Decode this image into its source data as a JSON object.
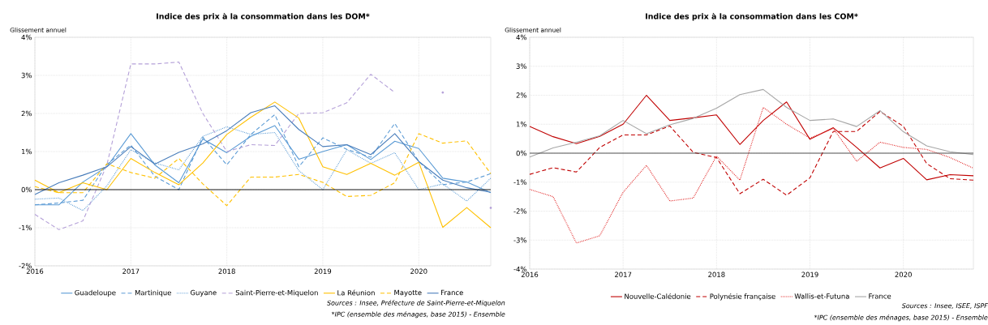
{
  "chart_data": [
    {
      "type": "line",
      "title": "Indice des prix à la consommation dans les DOM*",
      "ylabel": "Glissement annuel",
      "x": [
        2016,
        2016.25,
        2016.5,
        2016.75,
        2017,
        2017.25,
        2017.5,
        2017.75,
        2018,
        2018.25,
        2018.5,
        2018.75,
        2019,
        2019.25,
        2019.5,
        2019.75,
        2020,
        2020.25,
        2020.5,
        2020.75
      ],
      "xlim": [
        2016,
        2020.75
      ],
      "xticks": [
        2016,
        2017,
        2018,
        2019,
        2020
      ],
      "ylim": [
        -2,
        4
      ],
      "yticks": [
        {
          "value": -2,
          "label": "-2%"
        },
        {
          "value": -1,
          "label": "-1%"
        },
        {
          "value": 0,
          "label": "0%"
        },
        {
          "value": 1,
          "label": "1%"
        },
        {
          "value": 2,
          "label": "2%"
        },
        {
          "value": 3,
          "label": "3%"
        },
        {
          "value": 4,
          "label": "4%"
        }
      ],
      "grid": true,
      "legend": "bottom",
      "marker": "none",
      "ref_lines": [
        {
          "axis": "y",
          "value": 0,
          "color": "#000000"
        }
      ],
      "series": [
        {
          "name": "Guadeloupe",
          "color": "#5b9bd5",
          "line_style": "solid",
          "values": [
            -0.4,
            -0.4,
            0.2,
            0.6,
            1.47,
            0.65,
            0.18,
            1.33,
            0.97,
            1.4,
            1.68,
            0.8,
            1.0,
            1.18,
            0.79,
            1.27,
            1.08,
            0.3,
            0.2,
            -0.08
          ]
        },
        {
          "name": "Martinique",
          "color": "#5b9bd5",
          "line_style": "dashed",
          "values": [
            -0.4,
            -0.35,
            -0.28,
            0.66,
            1.17,
            0.35,
            0.0,
            1.38,
            0.65,
            1.45,
            1.97,
            0.6,
            1.36,
            1.06,
            0.85,
            1.74,
            0.74,
            0.13,
            0.2,
            0.42
          ]
        },
        {
          "name": "Guyane",
          "color": "#5b9bd5",
          "line_style": "dotted",
          "values": [
            -0.25,
            -0.22,
            -0.55,
            0.1,
            1.05,
            0.7,
            0.52,
            1.4,
            1.65,
            1.45,
            1.5,
            0.5,
            0.0,
            1.05,
            0.69,
            0.97,
            0.0,
            0.15,
            -0.3,
            0.3
          ]
        },
        {
          "name": "Saint-Pierre-et-Miquelon",
          "color": "#b4a0d8",
          "line_style": "dashed",
          "values": [
            -0.65,
            -1.05,
            -0.82,
            0.65,
            3.3,
            3.3,
            3.35,
            2.0,
            1.0,
            1.18,
            1.16,
            2.0,
            2.02,
            2.28,
            3.03,
            2.55,
            null,
            2.55,
            null,
            -0.48
          ]
        },
        {
          "name": "La Réunion",
          "color": "#ffc000",
          "line_style": "solid",
          "values": [
            0.25,
            -0.08,
            0.18,
            0.0,
            0.82,
            0.45,
            0.13,
            0.7,
            1.45,
            1.9,
            2.3,
            1.88,
            0.6,
            0.4,
            0.69,
            0.38,
            0.72,
            -0.99,
            -0.47,
            -1.0
          ]
        },
        {
          "name": "Mayotte",
          "color": "#ffc000",
          "line_style": "dashed",
          "values": [
            0.08,
            -0.08,
            -0.08,
            0.68,
            0.45,
            0.3,
            0.82,
            0.15,
            -0.42,
            0.33,
            0.33,
            0.4,
            0.19,
            -0.18,
            -0.15,
            0.18,
            1.47,
            1.22,
            1.28,
            0.42
          ]
        },
        {
          "name": "France",
          "color": "#4a7ebb",
          "line_style": "solid",
          "values": [
            -0.13,
            0.18,
            0.38,
            0.6,
            1.13,
            0.67,
            0.98,
            1.2,
            1.55,
            2.02,
            2.2,
            1.58,
            1.13,
            1.18,
            0.92,
            1.47,
            0.74,
            0.25,
            0.05,
            -0.07
          ]
        }
      ],
      "annotations": [
        "Sources : Insee, Préfecture de Saint-Pierre-et-Miquelon",
        "*IPC (ensemble des ménages, base 2015) - Ensemble"
      ]
    },
    {
      "type": "line",
      "title": "Indice des prix à la consommation dans les COM*",
      "ylabel": "Glissement annuel",
      "x": [
        2016,
        2016.25,
        2016.5,
        2016.75,
        2017,
        2017.25,
        2017.5,
        2017.75,
        2018,
        2018.25,
        2018.5,
        2018.75,
        2019,
        2019.25,
        2019.5,
        2019.75,
        2020,
        2020.25,
        2020.5,
        2020.75
      ],
      "xlim": [
        2016,
        2020.75
      ],
      "xticks": [
        2016,
        2017,
        2018,
        2019,
        2020
      ],
      "ylim": [
        -4,
        4
      ],
      "yticks": [
        {
          "value": -4,
          "label": "-4%"
        },
        {
          "value": -3,
          "label": "-3%"
        },
        {
          "value": -2,
          "label": "-2%"
        },
        {
          "value": -1,
          "label": "-1%"
        },
        {
          "value": 0,
          "label": "0%"
        },
        {
          "value": 1,
          "label": "1%"
        },
        {
          "value": 2,
          "label": "2%"
        },
        {
          "value": 3,
          "label": "3%"
        },
        {
          "value": 4,
          "label": "4%"
        }
      ],
      "grid": true,
      "legend": "bottom",
      "marker": "none",
      "ref_lines": [
        {
          "axis": "y",
          "value": 0,
          "color": "#404040"
        }
      ],
      "series": [
        {
          "name": "Nouvelle-Calédonie",
          "color": "#c00000",
          "line_style": "solid",
          "values": [
            0.92,
            0.57,
            0.33,
            0.58,
            1.0,
            2.0,
            1.13,
            1.22,
            1.32,
            0.3,
            1.13,
            1.77,
            0.48,
            0.88,
            0.2,
            -0.51,
            -0.18,
            -0.92,
            -0.74,
            -0.78
          ]
        },
        {
          "name": "Polynésie française",
          "color": "#c00000",
          "line_style": "dashed",
          "values": [
            -0.73,
            -0.5,
            -0.65,
            0.2,
            0.63,
            0.63,
            0.94,
            0.03,
            -0.15,
            -1.4,
            -0.9,
            -1.45,
            -0.85,
            0.75,
            0.75,
            1.44,
            0.93,
            -0.36,
            -0.88,
            -0.93
          ]
        },
        {
          "name": "Wallis-et-Futuna",
          "color": "#e02020",
          "line_style": "dotted",
          "values": [
            -1.25,
            -1.5,
            -3.1,
            -2.85,
            -1.35,
            -0.42,
            -1.65,
            -1.55,
            -0.1,
            -0.93,
            1.58,
            1.0,
            0.52,
            0.85,
            -0.28,
            0.38,
            0.2,
            0.13,
            -0.15,
            -0.52
          ]
        },
        {
          "name": "France",
          "color": "#a6a6a6",
          "line_style": "solid",
          "values": [
            -0.13,
            0.18,
            0.38,
            0.6,
            1.13,
            0.67,
            0.98,
            1.2,
            1.55,
            2.02,
            2.2,
            1.58,
            1.13,
            1.18,
            0.92,
            1.47,
            0.74,
            0.25,
            0.05,
            -0.05
          ]
        }
      ],
      "annotations": [
        "Sources : Insee, ISEE, ISPF",
        "*IPC (ensemble des ménages, base 2015) - Ensemble"
      ]
    }
  ]
}
